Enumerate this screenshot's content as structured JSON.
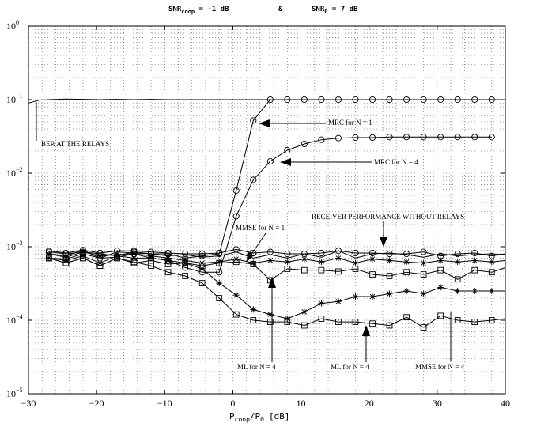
{
  "chart_data": {
    "type": "line",
    "title": {
      "snr_coop_label": "SNR",
      "snr_coop_sub": "coop",
      "snr_coop_value": " = -1 dB",
      "amp": "&",
      "snr0_label": "SNR",
      "snr0_sub": "0",
      "snr0_value": " = 7 dB"
    },
    "xlabel": {
      "p": "P",
      "p_sub": "coop",
      "slash": "/P",
      "p0_sub": "0",
      "units": "[dB]"
    },
    "ylabel": "",
    "xlim": [
      -30,
      40
    ],
    "ylim_log10": [
      -5,
      0
    ],
    "yscale": "log",
    "grid": true,
    "xticks": [
      -30,
      -20,
      -10,
      0,
      10,
      20,
      30,
      40
    ],
    "xtick_labels": [
      "−30",
      "−20",
      "−10",
      "0",
      "10",
      "20",
      "30",
      "40"
    ],
    "yticks": [
      {
        "exp": 0,
        "base": "10",
        "sup": "0"
      },
      {
        "exp": -1,
        "base": "10",
        "sup": "−1"
      },
      {
        "exp": -2,
        "base": "10",
        "sup": "−2"
      },
      {
        "exp": -3,
        "base": "10",
        "sup": "−3"
      },
      {
        "exp": -4,
        "base": "10",
        "sup": "−4"
      },
      {
        "exp": -5,
        "base": "10",
        "sup": "−5"
      }
    ],
    "x": [
      -27,
      -24.5,
      -22,
      -19.5,
      -17,
      -14.5,
      -12,
      -9.5,
      -7,
      -4.5,
      -2,
      0.5,
      3,
      5.5,
      8,
      10.5,
      13,
      15.5,
      18,
      20.5,
      23,
      25.5,
      28,
      30.5,
      33,
      35.5,
      38
    ],
    "series": [
      {
        "marker": "none",
        "x": [
          -30,
          -28.5,
          -27,
          -24.5,
          -22,
          -19.5,
          -17,
          -14.5,
          -12,
          -9.5,
          -7,
          -4.5,
          -2,
          0.5,
          3,
          5.5,
          8,
          10.5,
          13,
          15.5,
          18,
          20.5,
          23,
          25.5,
          28,
          30.5,
          33,
          35.5,
          38,
          40
        ],
        "values": [
          0.09,
          0.098,
          0.1,
          0.102,
          0.101,
          0.1,
          0.101,
          0.1,
          0.101,
          0.1,
          0.1,
          0.1,
          0.1,
          0.1,
          0.1,
          0.1,
          0.1,
          0.1,
          0.1,
          0.1,
          0.1,
          0.1,
          0.1,
          0.1,
          0.1,
          0.1,
          0.1,
          0.1,
          0.1,
          0.1
        ]
      },
      {
        "marker": "circle",
        "x": [
          -27,
          -24.5,
          -22,
          -19.5,
          -17,
          -14.5,
          -12,
          -9.5,
          -7,
          -4.5,
          -2,
          0.5,
          3,
          5.5,
          8,
          10.5,
          13,
          15.5,
          18,
          20.5,
          23,
          25.5,
          28,
          30.5,
          33,
          35.5,
          38
        ],
        "values": [
          0.00085,
          0.0008,
          0.00085,
          0.0008,
          0.00075,
          0.00085,
          0.0008,
          0.0008,
          0.0007,
          0.00075,
          0.0008,
          0.0058,
          0.052,
          0.1,
          0.1,
          0.1,
          0.1,
          0.1,
          0.1,
          0.1,
          0.1,
          0.1,
          0.1,
          0.1,
          0.1,
          0.1,
          0.1
        ]
      },
      {
        "marker": "circle",
        "x": [
          -27,
          -24.5,
          -22,
          -19.5,
          -17,
          -14.5,
          -12,
          -9.5,
          -7,
          -4.5,
          -2,
          0.5,
          3,
          5.5,
          8,
          10.5,
          13,
          15.5,
          18,
          20.5,
          23,
          25.5,
          28,
          30.5,
          33,
          35.5,
          38
        ],
        "values": [
          0.0007,
          0.00068,
          0.0008,
          0.0007,
          0.00072,
          0.0008,
          0.0007,
          0.00065,
          0.00052,
          0.00045,
          0.00045,
          0.0026,
          0.0081,
          0.0145,
          0.0205,
          0.025,
          0.0285,
          0.03,
          0.0305,
          0.0305,
          0.031,
          0.031,
          0.031,
          0.031,
          0.031,
          0.031,
          0.031
        ]
      },
      {
        "marker": "circle",
        "x": [
          -27,
          -24.5,
          -22,
          -19.5,
          -17,
          -14.5,
          -12,
          -9.5,
          -7,
          -4.5,
          -2,
          0.5,
          3,
          5.5,
          8,
          10.5,
          13,
          15.5,
          18,
          20.5,
          23,
          25.5,
          28,
          30.5,
          33,
          35.5,
          38,
          40
        ],
        "values": [
          0.00088,
          0.00082,
          0.0009,
          0.00082,
          0.00088,
          0.00088,
          0.00085,
          0.00082,
          0.0008,
          0.0008,
          0.00082,
          0.00092,
          0.00082,
          0.00085,
          0.0008,
          0.0008,
          0.00082,
          0.00088,
          0.00082,
          0.00082,
          0.0008,
          0.0008,
          0.00085,
          0.00075,
          0.0008,
          0.00082,
          0.00075,
          0.0008
        ]
      },
      {
        "marker": "none",
        "x": [
          -27,
          -24.5,
          -22,
          -19.5,
          -17,
          -14.5,
          -12,
          -9.5,
          -7,
          -4.5,
          -2,
          0.5,
          3,
          5.5,
          8,
          10.5,
          13,
          15.5,
          18,
          20.5,
          23,
          25.5,
          28,
          30.5,
          33,
          35.5,
          38,
          40
        ],
        "values": [
          0.0008,
          0.00075,
          0.0009,
          0.0007,
          0.00085,
          0.00082,
          0.0008,
          0.00075,
          0.00078,
          0.00072,
          0.00075,
          0.00085,
          0.0007,
          0.00078,
          0.0007,
          0.0008,
          0.00072,
          0.00088,
          0.0007,
          0.0008,
          0.00082,
          0.00078,
          0.00072,
          0.0008,
          0.00075,
          0.00078,
          0.0008,
          0.00078
        ]
      },
      {
        "marker": "star",
        "x": [
          -27,
          -24.5,
          -22,
          -19.5,
          -17,
          -14.5,
          -12,
          -9.5,
          -7,
          -4.5,
          -2,
          0.5,
          3,
          5.5,
          8,
          10.5,
          13,
          15.5,
          18,
          20.5,
          23,
          25.5,
          28,
          30.5,
          33,
          35.5,
          38,
          40
        ],
        "values": [
          0.0008,
          0.00072,
          0.00085,
          0.00075,
          0.00078,
          0.0008,
          0.00075,
          0.0007,
          0.00065,
          0.0006,
          0.00062,
          0.00068,
          0.0006,
          0.00065,
          0.00062,
          0.00068,
          0.00062,
          0.0007,
          0.0006,
          0.00068,
          0.00065,
          0.00062,
          0.0006,
          0.00065,
          0.00062,
          0.00065,
          0.00062,
          0.00065
        ]
      },
      {
        "marker": "square",
        "x": [
          -27,
          -24.5,
          -22,
          -19.5,
          -17,
          -14.5,
          -12,
          -9.5,
          -7,
          -4.5,
          -2,
          0.5,
          3,
          5.5,
          8,
          10.5,
          13,
          15.5,
          18,
          20.5,
          23,
          25.5,
          28,
          30.5,
          33,
          35.5,
          38,
          40
        ],
        "values": [
          0.0007,
          0.0006,
          0.0007,
          0.00055,
          0.0007,
          0.0006,
          0.00065,
          0.00058,
          0.0006,
          0.00055,
          0.0006,
          0.00062,
          0.00058,
          0.00035,
          0.0005,
          0.00048,
          0.00048,
          0.00046,
          0.0005,
          0.00042,
          0.0004,
          0.00045,
          0.00042,
          0.00048,
          0.00036,
          0.00048,
          0.00045,
          0.00052
        ]
      },
      {
        "marker": "star",
        "x": [
          -27,
          -24.5,
          -22,
          -19.5,
          -17,
          -14.5,
          -12,
          -9.5,
          -7,
          -4.5,
          -2,
          0.5,
          3,
          5.5,
          8,
          10.5,
          13,
          15.5,
          18,
          20.5,
          23,
          25.5,
          28,
          30.5,
          33,
          35.5,
          38,
          40
        ],
        "values": [
          0.0007,
          0.00065,
          0.00075,
          0.0006,
          0.00075,
          0.0007,
          0.0007,
          0.00065,
          0.0006,
          0.0005,
          0.00032,
          0.00022,
          0.00014,
          0.00012,
          0.000105,
          0.00013,
          0.00017,
          0.00018,
          0.00021,
          0.00021,
          0.00023,
          0.00025,
          0.00023,
          0.00028,
          0.00025,
          0.00025,
          0.00025,
          0.00025
        ]
      },
      {
        "marker": "square",
        "x": [
          -27,
          -24.5,
          -22,
          -19.5,
          -17,
          -14.5,
          -12,
          -9.5,
          -7,
          -4.5,
          -2,
          0.5,
          3,
          5.5,
          8,
          10.5,
          13,
          15.5,
          18,
          20.5,
          23,
          25.5,
          28,
          30.5,
          33,
          35.5,
          38,
          40
        ],
        "values": [
          0.0007,
          0.0006,
          0.0007,
          0.00055,
          0.0007,
          0.00062,
          0.00055,
          0.00045,
          0.0004,
          0.00032,
          0.0002,
          0.00012,
          0.0001,
          9.5e-05,
          9.5e-05,
          8.5e-05,
          0.000105,
          9.5e-05,
          9.5e-05,
          9e-05,
          8.5e-05,
          0.00011,
          8e-05,
          0.000115,
          0.0001,
          9.5e-05,
          0.0001,
          0.000105
        ]
      }
    ],
    "annotations": [
      {
        "text": "BER AT THE RELAYS"
      },
      {
        "text": "MRC for N = 1"
      },
      {
        "text": "MRC for N = 4"
      },
      {
        "text": "RECEIVER PERFORMANCE WITHOUT RELAYS"
      },
      {
        "text": "MMSE for N = 1"
      },
      {
        "text": "ML for N = 4"
      },
      {
        "text": "ML for N = 4"
      },
      {
        "text": "MMSE for N = 4"
      }
    ]
  }
}
